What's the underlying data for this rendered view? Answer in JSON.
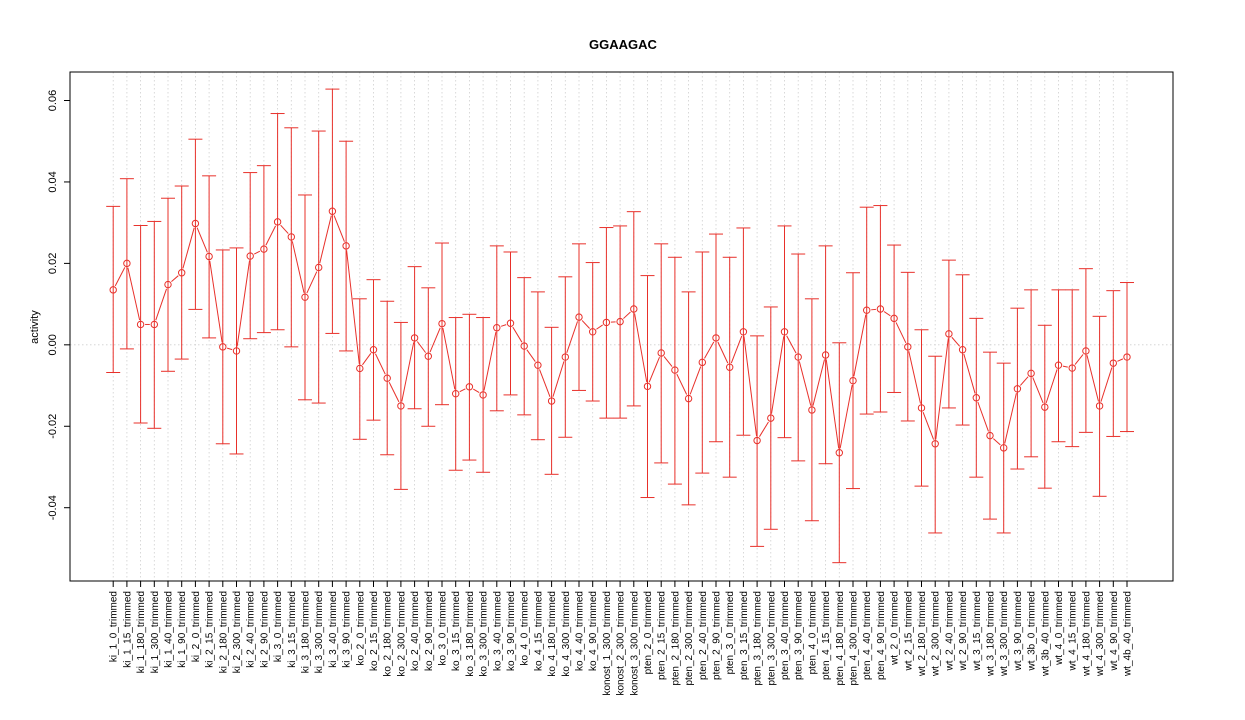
{
  "chart_data": {
    "type": "line",
    "title": "GGAAGAC",
    "xlabel": "",
    "ylabel": "activity",
    "ylim": [
      -0.058,
      0.067
    ],
    "yticks": [
      -0.04,
      -0.02,
      0.0,
      0.02,
      0.04,
      0.06
    ],
    "ytick_labels": [
      "-0.04",
      "-0.02",
      "0.00",
      "0.02",
      "0.04",
      "0.06"
    ],
    "grid": true,
    "reference_line": 0,
    "series_color": "#e8302a",
    "grid_color": "#cfcfcf",
    "categories": [
      "ki_1_0_trimmed",
      "ki_1_15_trimmed",
      "ki_1_180_trimmed",
      "ki_1_300_trimmed",
      "ki_1_40_trimmed",
      "ki_1_90_trimmed",
      "ki_2_0_trimmed",
      "ki_2_15_trimmed",
      "ki_2_180_trimmed",
      "ki_2_300_trimmed",
      "ki_2_40_trimmed",
      "ki_2_90_trimmed",
      "ki_3_0_trimmed",
      "ki_3_15_trimmed",
      "ki_3_180_trimmed",
      "ki_3_300_trimmed",
      "ki_3_40_trimmed",
      "ki_3_90_trimmed",
      "ko_2_0_trimmed",
      "ko_2_15_trimmed",
      "ko_2_180_trimmed",
      "ko_2_300_trimmed",
      "ko_2_40_trimmed",
      "ko_2_90_trimmed",
      "ko_3_0_trimmed",
      "ko_3_15_trimmed",
      "ko_3_180_trimmed",
      "ko_3_300_trimmed",
      "ko_3_40_trimmed",
      "ko_3_90_trimmed",
      "ko_4_0_trimmed",
      "ko_4_15_trimmed",
      "ko_4_180_trimmed",
      "ko_4_300_trimmed",
      "ko_4_40_trimmed",
      "ko_4_90_trimmed",
      "konost_1_300_trimmed",
      "konost_2_300_trimmed",
      "konost_3_300_trimmed",
      "pten_2_0_trimmed",
      "pten_2_15_trimmed",
      "pten_2_180_trimmed",
      "pten_2_300_trimmed",
      "pten_2_40_trimmed",
      "pten_2_90_trimmed",
      "pten_3_0_trimmed",
      "pten_3_15_trimmed",
      "pten_3_180_trimmed",
      "pten_3_300_trimmed",
      "pten_3_40_trimmed",
      "pten_3_90_trimmed",
      "pten_4_0_trimmed",
      "pten_4_15_trimmed",
      "pten_4_180_trimmed",
      "pten_4_300_trimmed",
      "pten_4_40_trimmed",
      "pten_4_90_trimmed",
      "wt_2_0_trimmed",
      "wt_2_15_trimmed",
      "wt_2_180_trimmed",
      "wt_2_300_trimmed",
      "wt_2_40_trimmed",
      "wt_2_90_trimmed",
      "wt_3_15_trimmed",
      "wt_3_180_trimmed",
      "wt_3_300_trimmed",
      "wt_3_90_trimmed",
      "wt_3b_0_trimmed",
      "wt_3b_40_trimmed",
      "wt_4_0_trimmed",
      "wt_4_15_trimmed",
      "wt_4_180_trimmed",
      "wt_4_300_trimmed",
      "wt_4_90_trimmed",
      "wt_4b_40_trimmed"
    ],
    "values": [
      0.0135,
      0.02,
      0.005,
      0.005,
      0.0148,
      0.0177,
      0.0298,
      0.0217,
      -0.0005,
      -0.0015,
      0.0218,
      0.0235,
      0.0302,
      0.0265,
      0.0117,
      0.019,
      0.0328,
      0.0243,
      -0.0058,
      -0.0012,
      -0.0082,
      -0.015,
      0.0017,
      -0.0028,
      0.0052,
      -0.012,
      -0.0103,
      -0.0123,
      0.0042,
      0.0053,
      -0.0003,
      -0.005,
      -0.0138,
      -0.003,
      0.0068,
      0.0032,
      0.0055,
      0.0057,
      0.0088,
      -0.0102,
      -0.002,
      -0.0062,
      -0.0132,
      -0.0043,
      0.0017,
      -0.0055,
      0.0032,
      -0.0235,
      -0.018,
      0.0032,
      -0.003,
      -0.016,
      -0.0025,
      -0.0265,
      -0.0088,
      0.0085,
      0.0088,
      0.0065,
      -0.0005,
      -0.0155,
      -0.0243,
      0.0027,
      -0.0012,
      -0.013,
      -0.0223,
      -0.0253,
      -0.0108,
      -0.007,
      -0.0153,
      -0.005,
      -0.0057,
      -0.0015,
      -0.015,
      -0.0045,
      -0.003
    ],
    "upper": [
      0.034,
      0.0408,
      0.0293,
      0.0303,
      0.036,
      0.039,
      0.0505,
      0.0415,
      0.0233,
      0.0238,
      0.0423,
      0.044,
      0.0568,
      0.0533,
      0.0368,
      0.0525,
      0.0628,
      0.05,
      0.0113,
      0.016,
      0.0107,
      0.0055,
      0.0192,
      0.014,
      0.025,
      0.0067,
      0.0075,
      0.0067,
      0.0243,
      0.0228,
      0.0165,
      0.013,
      0.0043,
      0.0167,
      0.0248,
      0.0202,
      0.0288,
      0.0292,
      0.0327,
      0.017,
      0.0248,
      0.0215,
      0.013,
      0.0228,
      0.0272,
      0.0215,
      0.0287,
      0.0022,
      0.0093,
      0.0292,
      0.0223,
      0.0113,
      0.0243,
      0.0005,
      0.0177,
      0.0338,
      0.0342,
      0.0245,
      0.0178,
      0.0037,
      -0.0028,
      0.0208,
      0.0172,
      0.0065,
      -0.0018,
      -0.0045,
      0.009,
      0.0135,
      0.0048,
      0.0135,
      0.0135,
      0.0187,
      0.007,
      0.0133,
      0.0153
    ],
    "lower": [
      -0.0068,
      -0.001,
      -0.0192,
      -0.0205,
      -0.0065,
      -0.0035,
      0.0087,
      0.0017,
      -0.0243,
      -0.0268,
      0.0015,
      0.003,
      0.0037,
      -0.0005,
      -0.0135,
      -0.0143,
      0.0028,
      -0.0015,
      -0.0232,
      -0.0185,
      -0.027,
      -0.0355,
      -0.0157,
      -0.02,
      -0.0147,
      -0.0308,
      -0.0283,
      -0.0313,
      -0.0162,
      -0.0123,
      -0.0172,
      -0.0233,
      -0.0318,
      -0.0227,
      -0.0112,
      -0.0138,
      -0.018,
      -0.018,
      -0.015,
      -0.0375,
      -0.029,
      -0.0342,
      -0.0393,
      -0.0315,
      -0.0238,
      -0.0325,
      -0.0222,
      -0.0495,
      -0.0453,
      -0.0228,
      -0.0285,
      -0.0432,
      -0.0292,
      -0.0535,
      -0.0353,
      -0.017,
      -0.0165,
      -0.0117,
      -0.0187,
      -0.0347,
      -0.0462,
      -0.0155,
      -0.0197,
      -0.0325,
      -0.0428,
      -0.0462,
      -0.0305,
      -0.0275,
      -0.0352,
      -0.0238,
      -0.025,
      -0.0215,
      -0.0372,
      -0.0225,
      -0.0213
    ]
  }
}
